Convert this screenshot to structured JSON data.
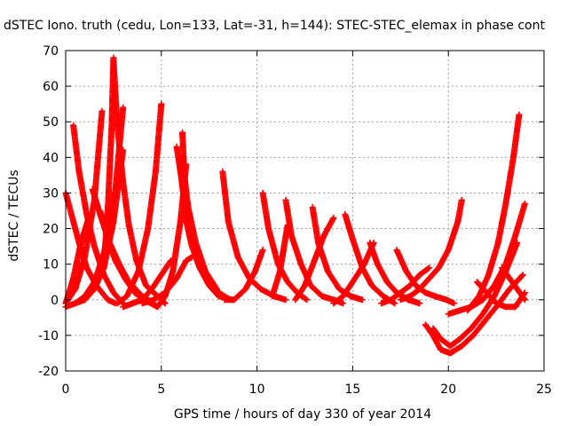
{
  "chart_data": {
    "type": "scatter",
    "title": "dSTEC Iono. truth (cedu, Lon=133, Lat=-31, h=144): STEC-STEC_elemax in phase cont",
    "xlabel": "GPS time / hours of day 330 of year 2014",
    "ylabel": "dSTEC  / TECUs",
    "xlim": [
      0,
      25
    ],
    "ylim": [
      -20,
      70
    ],
    "xticks": [
      "0",
      "5",
      "10",
      "15",
      "20",
      "25"
    ],
    "yticks": [
      "-20",
      "-10",
      "0",
      "10",
      "20",
      "30",
      "40",
      "50",
      "60",
      "70"
    ],
    "grid": true,
    "marker": "+",
    "color": "#ff0000",
    "series": [
      {
        "x": [
          0.0,
          0.3,
          0.7,
          1.1,
          1.6,
          2.2,
          2.6
        ],
        "y": [
          30,
          24,
          16,
          9,
          4,
          0,
          -1
        ]
      },
      {
        "x": [
          0.0,
          0.4,
          0.8,
          1.2
        ],
        "y": [
          -1,
          6,
          16,
          23
        ]
      },
      {
        "x": [
          0.0,
          0.5,
          1.0,
          1.5,
          2.0,
          2.6,
          3.0
        ],
        "y": [
          -2,
          -1,
          1,
          5,
          13,
          31,
          54
        ]
      },
      {
        "x": [
          0.0,
          0.5,
          1.0,
          1.5,
          1.9
        ],
        "y": [
          -1,
          3,
          12,
          28,
          53
        ]
      },
      {
        "x": [
          0.4,
          0.7,
          1.1,
          1.5,
          2.0,
          2.5,
          3.0
        ],
        "y": [
          49,
          36,
          24,
          15,
          7,
          2,
          -1
        ]
      },
      {
        "x": [
          0.5,
          1.0,
          1.5,
          2.0,
          2.5,
          3.0
        ],
        "y": [
          -1,
          0,
          3,
          9,
          22,
          42
        ]
      },
      {
        "x": [
          2.0,
          2.2,
          2.4,
          2.5
        ],
        "y": [
          10,
          25,
          48,
          68
        ]
      },
      {
        "x": [
          1.4,
          1.8,
          2.3,
          2.8,
          3.3,
          4.0,
          4.6
        ],
        "y": [
          31,
          24,
          16,
          10,
          5,
          1,
          -1
        ]
      },
      {
        "x": [
          1.8,
          2.2,
          2.6,
          3.1,
          3.6,
          4.1,
          4.8
        ],
        "y": [
          25,
          17,
          11,
          6,
          2,
          0,
          -2
        ]
      },
      {
        "x": [
          2.5,
          2.7,
          3.0,
          3.3,
          3.7,
          4.2,
          4.8,
          5.2
        ],
        "y": [
          67,
          49,
          33,
          21,
          11,
          4,
          1,
          -1
        ]
      },
      {
        "x": [
          2.7,
          3.2,
          3.8,
          4.3,
          4.7,
          5.0
        ],
        "y": [
          -1,
          1,
          8,
          20,
          36,
          55
        ]
      },
      {
        "x": [
          3.0,
          3.5,
          4.0,
          4.5,
          5.0,
          5.5
        ],
        "y": [
          -2,
          -1,
          0,
          3,
          7,
          11
        ]
      },
      {
        "x": [
          4.0,
          4.6,
          5.2,
          5.8,
          6.3,
          6.6
        ],
        "y": [
          -1,
          0,
          2,
          6,
          11,
          12
        ]
      },
      {
        "x": [
          5.8,
          6.0,
          6.2,
          6.5,
          6.9,
          7.4,
          8.0,
          8.6
        ],
        "y": [
          43,
          36,
          28,
          20,
          12,
          6,
          2,
          0
        ]
      },
      {
        "x": [
          6.0,
          6.1,
          6.3,
          6.6,
          7.0,
          7.5,
          8.0,
          8.7
        ],
        "y": [
          40,
          32,
          22,
          15,
          9,
          4,
          1,
          0
        ]
      },
      {
        "x": [
          6.1,
          6.2,
          6.4,
          6.8,
          7.3,
          7.9
        ],
        "y": [
          47,
          35,
          26,
          16,
          8,
          3
        ]
      },
      {
        "x": [
          4.8,
          5.2,
          5.6,
          6.0,
          6.3
        ],
        "y": [
          -2,
          1,
          8,
          22,
          38
        ]
      },
      {
        "x": [
          8.2,
          8.5,
          9.0,
          9.6,
          10.2,
          10.9,
          11.5
        ],
        "y": [
          36,
          22,
          12,
          6,
          3,
          1,
          0
        ]
      },
      {
        "x": [
          8.3,
          8.8,
          9.4,
          9.9,
          10.3
        ],
        "y": [
          0,
          0,
          3,
          8,
          14
        ]
      },
      {
        "x": [
          10.3,
          10.6,
          11.1,
          11.6,
          12.1,
          12.6
        ],
        "y": [
          30,
          20,
          10,
          5,
          2,
          0
        ]
      },
      {
        "x": [
          10.8,
          11.2,
          11.6
        ],
        "y": [
          1,
          8,
          21
        ]
      },
      {
        "x": [
          11.5,
          11.8,
          12.3,
          12.8,
          13.4,
          14.0,
          14.5
        ],
        "y": [
          28,
          18,
          10,
          4,
          1,
          0,
          -1
        ]
      },
      {
        "x": [
          12.0,
          12.5,
          13.0,
          13.5,
          14.0
        ],
        "y": [
          0,
          4,
          11,
          18,
          23
        ]
      },
      {
        "x": [
          12.9,
          13.2,
          13.7,
          14.3,
          14.9,
          15.5
        ],
        "y": [
          26,
          16,
          8,
          3,
          1,
          0
        ]
      },
      {
        "x": [
          14.0,
          14.5,
          15.0,
          15.6,
          16.1
        ],
        "y": [
          -1,
          1,
          5,
          10,
          16
        ]
      },
      {
        "x": [
          14.6,
          15.0,
          15.5,
          16.0,
          16.6,
          17.2
        ],
        "y": [
          24,
          17,
          9,
          4,
          1,
          -1
        ]
      },
      {
        "x": [
          15.9,
          16.3,
          16.8,
          17.3,
          17.9,
          18.5
        ],
        "y": [
          16,
          10,
          5,
          2,
          0,
          -1
        ]
      },
      {
        "x": [
          16.5,
          17.0,
          17.5,
          18.0,
          18.5,
          19.0
        ],
        "y": [
          -1,
          0,
          2,
          4,
          7,
          9
        ]
      },
      {
        "x": [
          17.3,
          17.8,
          18.3,
          18.8,
          19.3,
          19.9,
          20.3
        ],
        "y": [
          14,
          8,
          4,
          2,
          1,
          0,
          -1
        ]
      },
      {
        "x": [
          17.5,
          18.0,
          18.5,
          19.0,
          19.5,
          20.0,
          20.5,
          20.7
        ],
        "y": [
          0,
          1,
          3,
          6,
          9,
          14,
          22,
          28
        ]
      },
      {
        "x": [
          18.8,
          19.2,
          19.6,
          20.1,
          20.7,
          21.3,
          21.9,
          22.5,
          23.2,
          23.9
        ],
        "y": [
          -7,
          -10,
          -14,
          -15,
          -13,
          -10,
          -6,
          -2,
          3,
          7
        ]
      },
      {
        "x": [
          19.2,
          19.6,
          20.1,
          20.6,
          21.2,
          21.8,
          22.4,
          23.0,
          23.6
        ],
        "y": [
          -8,
          -11,
          -13,
          -11,
          -8,
          -4,
          1,
          8,
          16
        ]
      },
      {
        "x": [
          20.0,
          20.6,
          21.2,
          21.8,
          22.4,
          23.0,
          23.5,
          24.0
        ],
        "y": [
          -4,
          -3,
          -2,
          0,
          4,
          10,
          18,
          27
        ]
      },
      {
        "x": [
          21.5,
          22.0,
          22.5,
          23.0,
          23.5,
          24.0
        ],
        "y": [
          5,
          2,
          -1,
          -2,
          -2,
          2
        ]
      },
      {
        "x": [
          22.8,
          23.2,
          23.6,
          24.0
        ],
        "y": [
          9,
          6,
          3,
          0
        ]
      },
      {
        "x": [
          21.0,
          21.6,
          22.1,
          22.6,
          23.0,
          23.4,
          23.7
        ],
        "y": [
          -3,
          1,
          7,
          16,
          27,
          40,
          52
        ]
      }
    ]
  }
}
